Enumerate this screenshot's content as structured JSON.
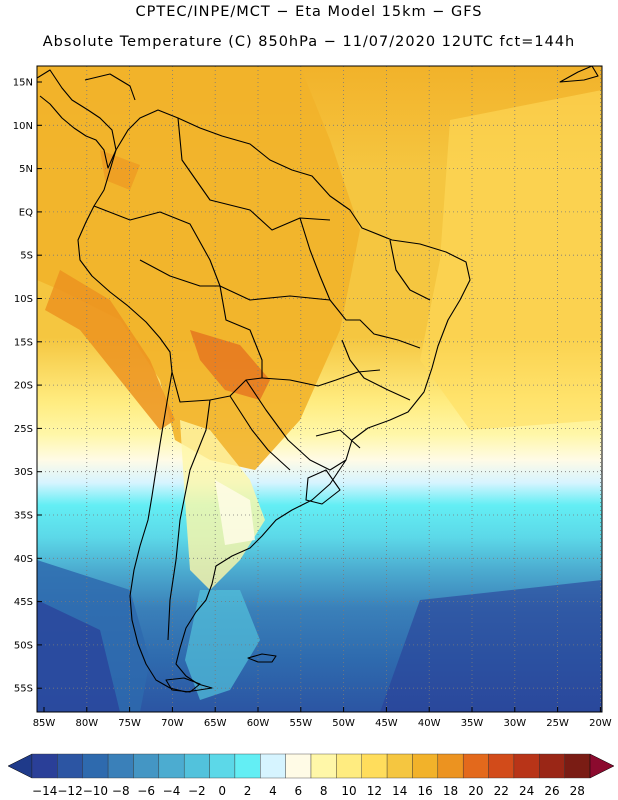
{
  "header": {
    "line1": "CPTEC/INPE/MCT −  Eta Model 15km − GFS",
    "line2": "Absolute Temperature (C) 850hPa − 11/07/2020 12UTC fct=144h"
  },
  "map": {
    "lat_labels": [
      "15N",
      "10N",
      "5N",
      "EQ",
      "5S",
      "10S",
      "15S",
      "20S",
      "25S",
      "30S",
      "35S",
      "40S",
      "45S",
      "50S",
      "55S"
    ],
    "lon_labels": [
      "85W",
      "80W",
      "75W",
      "70W",
      "65W",
      "60W",
      "55W",
      "50W",
      "45W",
      "40W",
      "35W",
      "30W",
      "25W",
      "20W"
    ]
  },
  "colorbar": {
    "labels": [
      "−14",
      "−12",
      "−10",
      "−8",
      "−6",
      "−4",
      "−2",
      "0",
      "2",
      "4",
      "6",
      "8",
      "10",
      "12",
      "14",
      "16",
      "18",
      "20",
      "22",
      "24",
      "26",
      "28"
    ],
    "colors": [
      "#2a3f98",
      "#2c55a3",
      "#2e6aae",
      "#3a80b9",
      "#4496c4",
      "#4cacd0",
      "#52c2dc",
      "#5cd8e8",
      "#63eef4",
      "#d6f4ff",
      "#fffbe6",
      "#fff7a8",
      "#ffec80",
      "#ffdd5c",
      "#f5c640",
      "#f2b22a",
      "#ec9320",
      "#e3691c",
      "#d24b1a",
      "#b83418",
      "#9a2616",
      "#7a1c14"
    ],
    "end_low": "#1f3a8a",
    "end_high": "#8b0a2e"
  }
}
